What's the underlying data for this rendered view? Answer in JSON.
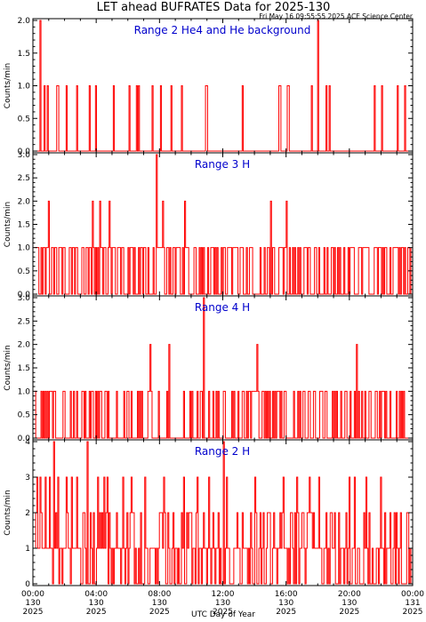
{
  "title": "LET ahead BUFRATES Data for 2025-130",
  "timestamp": "Fri May 16 09:55:55 2025 ACE Science Center",
  "xlabel": "UTC Day of Year",
  "colors": {
    "trace": "#ff0000",
    "panel_label": "#0000cc",
    "axes": "#000000"
  },
  "chart_data": [
    {
      "type": "line",
      "label": "Range 2 He4 and He background",
      "ylabel": "Counts/min",
      "ylim": [
        0,
        2.0
      ],
      "yticks": [
        "0.0",
        "0.5",
        "1.0",
        "1.5",
        "2.0"
      ],
      "ytick_values": [
        0,
        0.5,
        1.0,
        1.5,
        2.0
      ],
      "spikes_1": [
        9,
        12,
        21,
        22,
        30,
        40,
        52,
        58,
        75,
        90,
        97,
        99,
        112,
        120,
        130,
        140,
        163,
        164,
        198,
        233,
        234,
        241,
        242,
        264,
        278,
        281,
        324,
        331,
        346,
        353
      ],
      "spikes_2": [
        5,
        270
      ]
    },
    {
      "type": "line",
      "label": "Range 3 H",
      "ylabel": "Counts/min",
      "ylim": [
        0,
        3.0
      ],
      "yticks": [
        "0.0",
        "0.5",
        "1.0",
        "1.5",
        "2.0",
        "2.5",
        "3.0"
      ],
      "ytick_values": [
        0,
        0.5,
        1.0,
        1.5,
        2.0,
        2.5,
        3.0
      ],
      "density": 0.5,
      "seed": 11,
      "twos": [
        13,
        55,
        62,
        71,
        122,
        143,
        225,
        240
      ],
      "threes": [
        116
      ]
    },
    {
      "type": "line",
      "label": "Range 4 H",
      "ylabel": "Counts/min",
      "ylim": [
        0,
        3.0
      ],
      "yticks": [
        "0.0",
        "0.5",
        "1.0",
        "1.5",
        "2.0",
        "2.5",
        "3.0"
      ],
      "ytick_values": [
        0,
        0.5,
        1.0,
        1.5,
        2.0,
        2.5,
        3.0
      ],
      "density": 0.3,
      "seed": 23,
      "twos": [
        110,
        128,
        212,
        307
      ],
      "threes": [
        161
      ]
    },
    {
      "type": "line",
      "label": "Range 2 H",
      "ylabel": "Counts/min",
      "ylim": [
        0,
        4
      ],
      "yticks": [
        "0",
        "1",
        "2",
        "3",
        "4"
      ],
      "ytick_values": [
        0,
        1,
        2,
        3,
        4
      ],
      "density": 0.55,
      "two_density": 0.22,
      "seed": 37,
      "threes": [
        2,
        5,
        10,
        14,
        22,
        30,
        35,
        40,
        60,
        66,
        69,
        84,
        92,
        105,
        123,
        142,
        155,
        166,
        183,
        210,
        237,
        250,
        262,
        271,
        300,
        305,
        316,
        330
      ],
      "fours": [
        18,
        50,
        180
      ]
    }
  ],
  "xticks": [
    {
      "time": "00:00",
      "doy": "130",
      "year": "2025"
    },
    {
      "time": "04:00",
      "doy": "130",
      "year": "2025"
    },
    {
      "time": "08:00",
      "doy": "130",
      "year": "2025"
    },
    {
      "time": "12:00",
      "doy": "130",
      "year": "2025"
    },
    {
      "time": "16:00",
      "doy": "130",
      "year": "2025"
    },
    {
      "time": "20:00",
      "doy": "130",
      "year": "2025"
    },
    {
      "time": "00:00",
      "doy": "131",
      "year": "2025"
    }
  ]
}
